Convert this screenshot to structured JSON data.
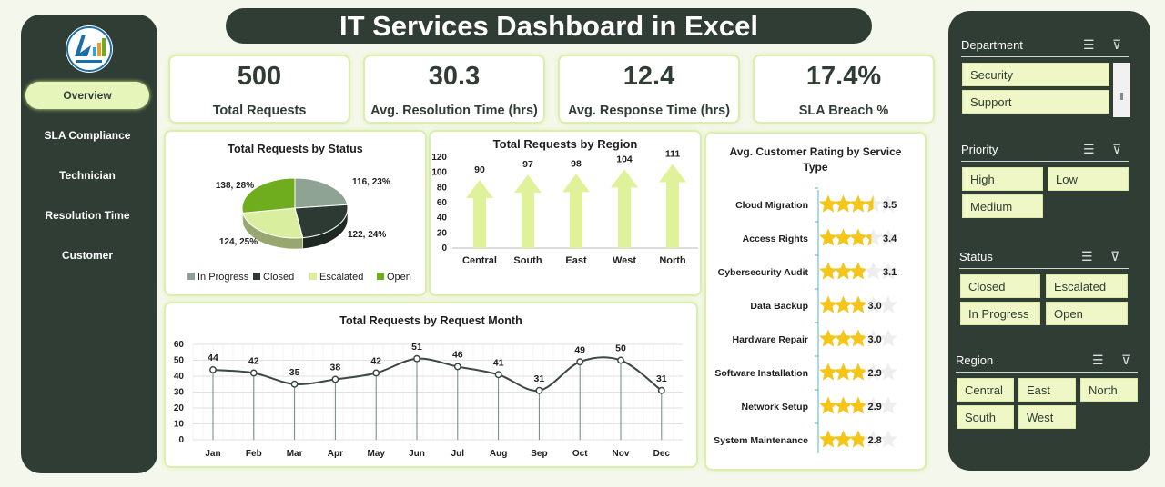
{
  "title": "IT Services Dashboard in Excel",
  "nav": {
    "items": [
      "Overview",
      "SLA Compliance",
      "Technician",
      "Resolution Time",
      "Customer"
    ],
    "active_index": 0
  },
  "kpis": [
    {
      "value": "500",
      "label": "Total Requests"
    },
    {
      "value": "30.3",
      "label": "Avg. Resolution Time (hrs)"
    },
    {
      "value": "12.4",
      "label": "Avg. Response Time (hrs)"
    },
    {
      "value": "17.4%",
      "label": "SLA Breach %"
    }
  ],
  "filters": {
    "department": {
      "label": "Department",
      "options": [
        "Security",
        "Support"
      ]
    },
    "priority": {
      "label": "Priority",
      "options": [
        "High",
        "Low",
        "Medium"
      ]
    },
    "status": {
      "label": "Status",
      "options": [
        "Closed",
        "Escalated",
        "In Progress",
        "Open"
      ]
    },
    "region": {
      "label": "Region",
      "options": [
        "Central",
        "East",
        "North",
        "South",
        "West"
      ]
    }
  },
  "colors": {
    "dark": "#2f3d35",
    "accent": "#e6f5b9",
    "star": "#f5c518"
  },
  "chart_data": [
    {
      "type": "pie",
      "title": "Total Requests  by Status",
      "categories": [
        "In Progress",
        "Closed",
        "Escalated",
        "Open"
      ],
      "values": [
        116,
        122,
        124,
        138
      ],
      "data_labels": [
        "116, 23%",
        "122, 24%",
        "124, 25%",
        "138, 28%"
      ],
      "colors": [
        "#8fa394",
        "#2d3a33",
        "#d9ef9f",
        "#6fad1e"
      ],
      "legend": "bottom"
    },
    {
      "type": "bar",
      "title": "Total Requests  by Region",
      "categories": [
        "Central",
        "South",
        "East",
        "West",
        "North"
      ],
      "values": [
        90,
        97,
        98,
        104,
        111
      ],
      "ylim": [
        0,
        120
      ],
      "yticks": [
        "0",
        "20",
        "40",
        "60",
        "80",
        "100",
        "120"
      ]
    },
    {
      "type": "line",
      "title": "Total Requests  by Request Month",
      "categories": [
        "Jan",
        "Feb",
        "Mar",
        "Apr",
        "May",
        "Jun",
        "Jul",
        "Aug",
        "Sep",
        "Oct",
        "Nov",
        "Dec"
      ],
      "values": [
        44,
        42,
        35,
        38,
        42,
        51,
        46,
        41,
        31,
        49,
        50,
        31
      ],
      "ylim": [
        0,
        60
      ],
      "yticks": [
        "0",
        "10",
        "20",
        "30",
        "40",
        "50",
        "60"
      ]
    },
    {
      "type": "bar",
      "title": "Avg. Customer Rating by Service Type",
      "categories": [
        "Cloud Migration",
        "Access Rights",
        "Cybersecurity Audit",
        "Data Backup",
        "Hardware Repair",
        "Software Installation",
        "Network Setup",
        "System Maintenance"
      ],
      "values": [
        3.5,
        3.4,
        3.1,
        3.0,
        3.0,
        2.9,
        2.9,
        2.8
      ],
      "value_labels": [
        "3.5",
        "3.4",
        "3.1",
        "3.0",
        "3.0",
        "2.9",
        "2.9",
        "2.8"
      ],
      "max_stars": 5
    }
  ]
}
